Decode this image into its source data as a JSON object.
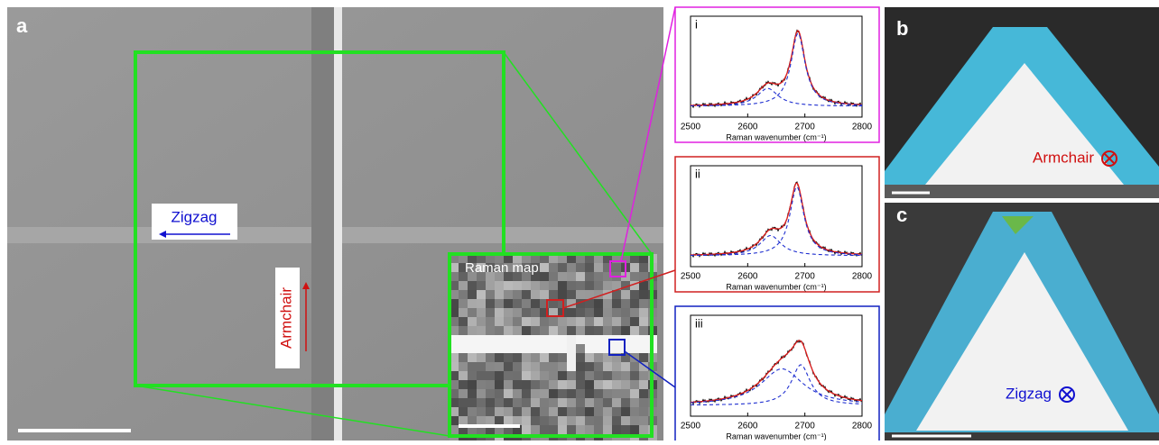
{
  "panels": {
    "a": {
      "label": "a",
      "zigzag": "Zigzag",
      "armchair": "Armchair",
      "inset": "Raman map"
    },
    "b": {
      "label": "b",
      "direction": "Armchair"
    },
    "c": {
      "label": "c",
      "direction": "Zigzag"
    }
  },
  "spectra": [
    {
      "label": "i",
      "color": "#e020e0",
      "xlim": [
        2500,
        2800
      ],
      "xticks": [
        2500,
        2600,
        2700,
        2800
      ],
      "xlabel": "Raman wavenumber (cm⁻¹)",
      "peaks": [
        {
          "center": 2635,
          "width": 45,
          "height": 0.22
        },
        {
          "center": 2688,
          "width": 30,
          "height": 0.9
        }
      ]
    },
    {
      "label": "ii",
      "color": "#d02020",
      "xlim": [
        2500,
        2800
      ],
      "xticks": [
        2500,
        2600,
        2700,
        2800
      ],
      "xlabel": "Raman wavenumber (cm⁻¹)",
      "peaks": [
        {
          "center": 2640,
          "width": 45,
          "height": 0.25
        },
        {
          "center": 2686,
          "width": 30,
          "height": 0.85
        }
      ]
    },
    {
      "label": "iii",
      "color": "#1020c0",
      "xlim": [
        2500,
        2800
      ],
      "xticks": [
        2500,
        2600,
        2700,
        2800
      ],
      "xlabel": "Raman wavenumber (cm⁻¹)",
      "peaks": [
        {
          "center": 2660,
          "width": 90,
          "height": 0.45
        },
        {
          "center": 2693,
          "width": 40,
          "height": 0.5
        }
      ]
    }
  ]
}
